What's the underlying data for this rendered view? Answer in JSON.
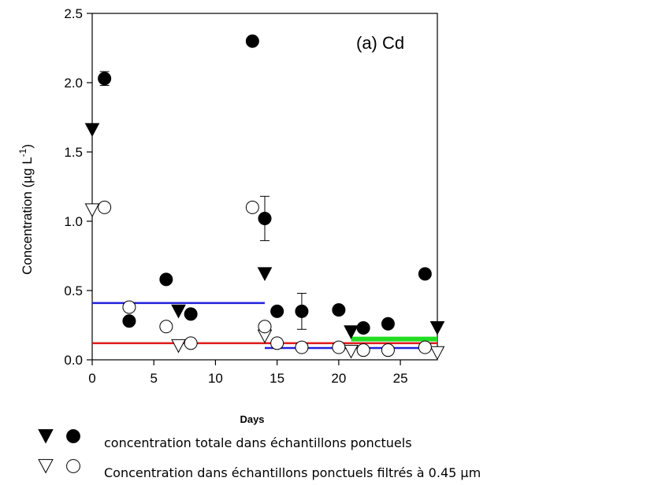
{
  "chart_data": {
    "type": "scatter",
    "panel_label": "(a) Cd",
    "xlabel": "Days",
    "ylabel": "Concentration (µg L",
    "ylabel_sup": "-1",
    "ylabel_end": ")",
    "xlim": [
      0,
      28
    ],
    "ylim": [
      0,
      2.5
    ],
    "xticks": [
      0,
      5,
      10,
      15,
      20,
      25
    ],
    "yticks": [
      0.0,
      0.5,
      1.0,
      1.5,
      2.0,
      2.5
    ],
    "ytick_labels": [
      "0.0",
      "0.5",
      "1.0",
      "1.5",
      "2.0",
      "2.5"
    ],
    "series": [
      {
        "marker": "filled-circle",
        "points": [
          {
            "x": 1,
            "y": 2.03,
            "err": 0.05
          },
          {
            "x": 3,
            "y": 0.28
          },
          {
            "x": 6,
            "y": 0.58
          },
          {
            "x": 8,
            "y": 0.33
          },
          {
            "x": 13,
            "y": 2.3
          },
          {
            "x": 14,
            "y": 1.02,
            "err": 0.16
          },
          {
            "x": 15,
            "y": 0.35
          },
          {
            "x": 17,
            "y": 0.35,
            "err": 0.13
          },
          {
            "x": 20,
            "y": 0.36
          },
          {
            "x": 22,
            "y": 0.23
          },
          {
            "x": 24,
            "y": 0.26
          },
          {
            "x": 27,
            "y": 0.62
          }
        ]
      },
      {
        "marker": "open-circle",
        "points": [
          {
            "x": 1,
            "y": 1.1
          },
          {
            "x": 3,
            "y": 0.38
          },
          {
            "x": 6,
            "y": 0.24
          },
          {
            "x": 8,
            "y": 0.12
          },
          {
            "x": 13,
            "y": 1.1
          },
          {
            "x": 14,
            "y": 0.24
          },
          {
            "x": 15,
            "y": 0.12
          },
          {
            "x": 17,
            "y": 0.09
          },
          {
            "x": 20,
            "y": 0.09
          },
          {
            "x": 22,
            "y": 0.07
          },
          {
            "x": 24,
            "y": 0.07
          },
          {
            "x": 27,
            "y": 0.09
          }
        ]
      },
      {
        "marker": "filled-triangle-down",
        "points": [
          {
            "x": 0,
            "y": 1.66
          },
          {
            "x": 7,
            "y": 0.35
          },
          {
            "x": 14,
            "y": 0.62
          },
          {
            "x": 21,
            "y": 0.2
          },
          {
            "x": 28,
            "y": 0.23
          }
        ]
      },
      {
        "marker": "open-triangle-down",
        "points": [
          {
            "x": 0,
            "y": 1.08
          },
          {
            "x": 7,
            "y": 0.1
          },
          {
            "x": 14,
            "y": 0.17
          },
          {
            "x": 21,
            "y": 0.06
          },
          {
            "x": 28,
            "y": 0.05
          }
        ]
      }
    ],
    "segments": [
      {
        "color": "#2222dd",
        "x": [
          0,
          14
        ],
        "y": 0.41,
        "width": 2.5
      },
      {
        "color": "#dd1a1a",
        "x": [
          0,
          28
        ],
        "y": 0.12,
        "width": 2.5
      },
      {
        "color": "#2222dd",
        "x": [
          14,
          28
        ],
        "y": 0.085,
        "width": 2.5
      },
      {
        "color": "#22dd22",
        "x": [
          21,
          28
        ],
        "y": 0.15,
        "width": 6
      }
    ],
    "legend": [
      {
        "markers": [
          "filled-triangle-down",
          "filled-circle"
        ],
        "text": "concentration totale dans échantillons ponctuels"
      },
      {
        "markers": [
          "open-triangle-down",
          "open-circle"
        ],
        "text": "Concentration dans échantillons ponctuels filtrés à 0.45 µm"
      }
    ]
  }
}
